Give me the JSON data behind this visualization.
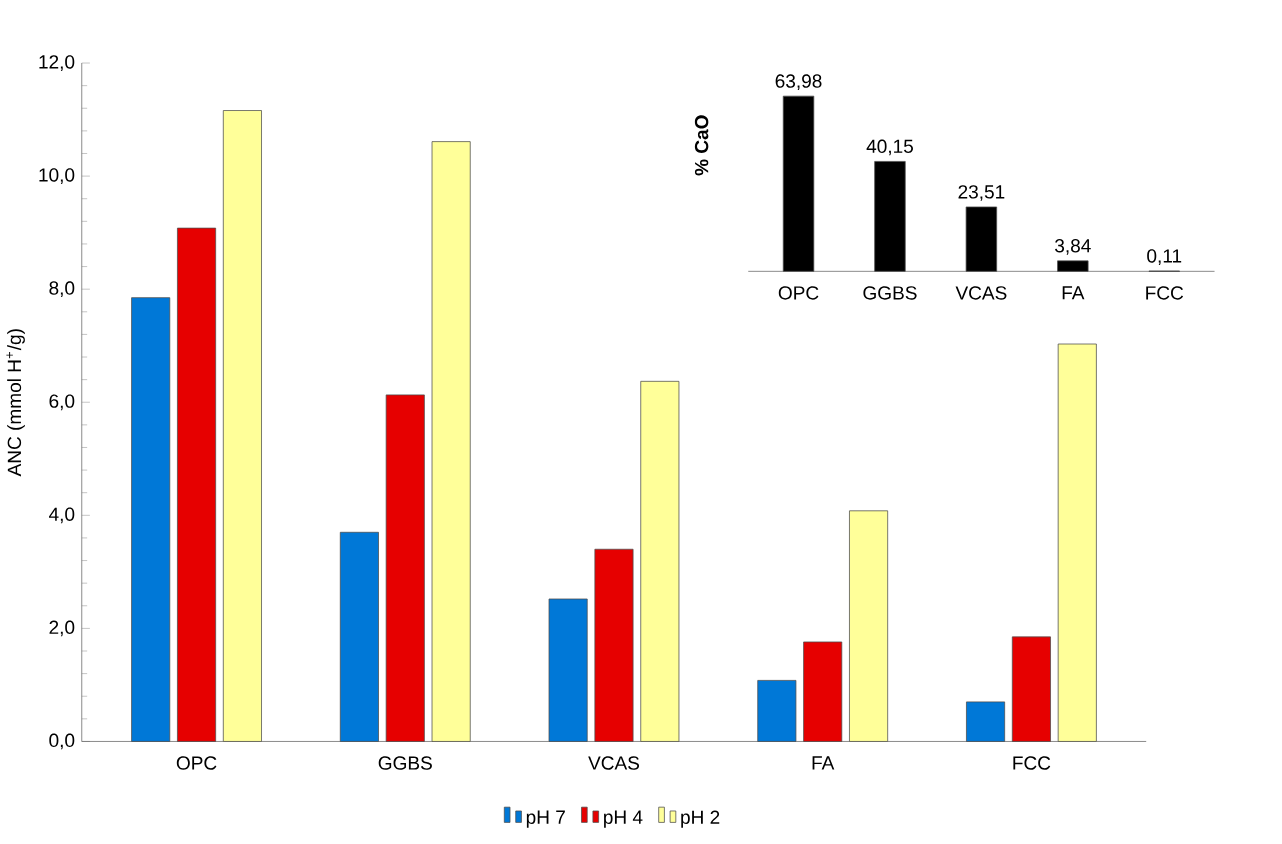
{
  "chart_data": [
    {
      "type": "bar",
      "ylabel": "ANC (mmol H$^{+}$/g)",
      "categories": [
        "OPC",
        "GGBS",
        "VCAS",
        "FA",
        "FCC"
      ],
      "series": [
        {
          "name": "pH 7",
          "color": "#0078d7",
          "values": [
            7.85,
            3.7,
            2.52,
            1.08,
            0.7
          ]
        },
        {
          "name": "pH 4",
          "color": "#e60000",
          "values": [
            9.08,
            6.13,
            3.4,
            1.76,
            1.85
          ]
        },
        {
          "name": "pH 2",
          "color": "#ffff99",
          "values": [
            11.16,
            10.61,
            6.37,
            4.08,
            7.03
          ]
        }
      ],
      "ylim": [
        0,
        12
      ],
      "yticks": [
        {
          "value": 0,
          "label": "0,0"
        },
        {
          "value": 2,
          "label": "2,0"
        },
        {
          "value": 4,
          "label": "4,0"
        },
        {
          "value": 6,
          "label": "6,0"
        },
        {
          "value": 8,
          "label": "8,0"
        },
        {
          "value": 10,
          "label": "10,0"
        },
        {
          "value": 12,
          "label": "12,0"
        }
      ],
      "legend": "bottom",
      "grid": false
    },
    {
      "type": "bar",
      "ylabel": "% CaO",
      "categories": [
        "OPC",
        "GGBS",
        "VCAS",
        "FA",
        "FCC"
      ],
      "values": [
        63.98,
        40.15,
        23.51,
        3.84,
        0.11
      ],
      "color": "#000000",
      "value_labels": [
        "63,98",
        "40,15",
        "23,51",
        "3,84",
        "0,11"
      ]
    }
  ]
}
